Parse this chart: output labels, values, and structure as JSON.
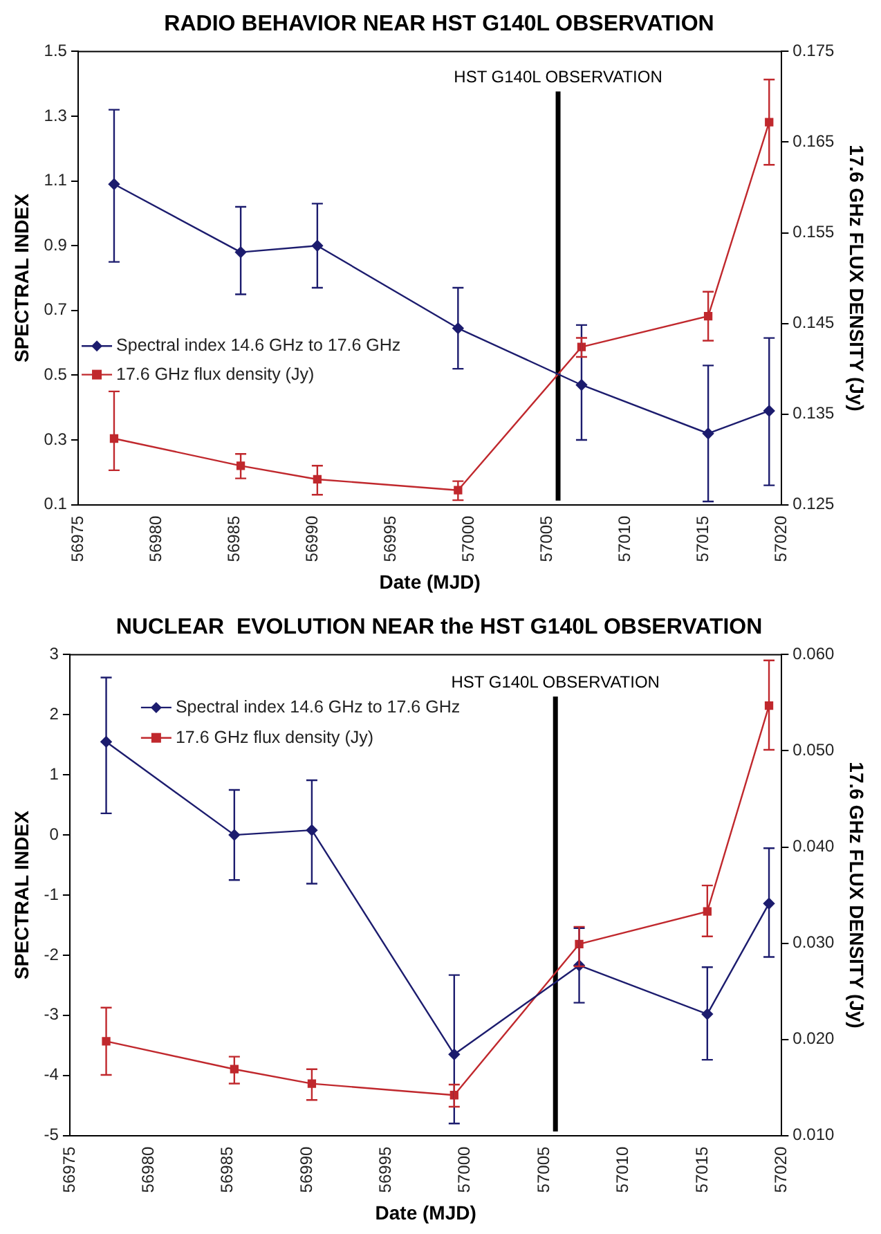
{
  "chart_data": [
    {
      "type": "line",
      "title": "RADIO BEHAVIOR NEAR HST G140L OBSERVATION",
      "xlabel": "Date (MJD)",
      "ylabel": "SPECTRAL INDEX",
      "y2label": "17.6 GHz FLUX DENSITY (Jy)",
      "x": [
        56977.3,
        56985.4,
        56990.3,
        56999.3,
        57007.2,
        57015.3,
        57019.2
      ],
      "xlim": [
        56975,
        57020
      ],
      "xticks": [
        56975,
        56980,
        56985,
        56990,
        56995,
        57000,
        57005,
        57010,
        57015,
        57020
      ],
      "ylim": [
        0.1,
        1.5
      ],
      "yticks": [
        0.1,
        0.3,
        0.5,
        0.7,
        0.9,
        1.1,
        1.3,
        1.5
      ],
      "y2lim": [
        0.125,
        0.175
      ],
      "y2ticks": [
        0.125,
        0.135,
        0.145,
        0.155,
        0.165,
        0.175
      ],
      "grid": false,
      "legend": "left",
      "series": [
        {
          "name": "Spectral index 14.6 GHz to 17.6 GHz",
          "color": "#1c1c6e",
          "marker": "diamond",
          "values": [
            1.09,
            0.88,
            0.9,
            0.645,
            0.47,
            0.32,
            0.39
          ],
          "errors": [
            [
              0.85,
              1.32
            ],
            [
              0.75,
              1.02
            ],
            [
              0.77,
              1.03
            ],
            [
              0.52,
              0.77
            ],
            [
              0.3,
              0.655
            ],
            [
              0.11,
              0.53
            ],
            [
              0.16,
              0.615
            ]
          ]
        },
        {
          "name": "17.6 GHz flux density (Jy)",
          "color": "#c0282d",
          "marker": "square",
          "axis": "y2",
          "values": [
            0.1323,
            0.1293,
            0.1278,
            0.1266,
            0.1424,
            0.1458,
            0.1672
          ],
          "errors": [
            [
              0.1288,
              0.1375
            ],
            [
              0.1279,
              0.1306
            ],
            [
              0.1261,
              0.1293
            ],
            [
              0.1255,
              0.1276
            ],
            [
              0.1413,
              0.1434
            ],
            [
              0.1431,
              0.1485
            ],
            [
              0.1625,
              0.1719
            ]
          ]
        }
      ],
      "ref_lines": [
        {
          "axis": "x",
          "value": 57005.7,
          "label": "HST G140L OBSERVATION",
          "color": "#000000"
        }
      ]
    },
    {
      "type": "line",
      "title": "NUCLEAR  EVOLUTION NEAR the HST G140L OBSERVATION",
      "xlabel": "Date (MJD)",
      "ylabel": "SPECTRAL INDEX",
      "y2label": "17.6 GHz FLUX DENSITY (Jy)",
      "x": [
        56977.3,
        56985.4,
        56990.3,
        56999.3,
        57007.2,
        57015.3,
        57019.2
      ],
      "xlim": [
        56975,
        57020
      ],
      "xticks": [
        56975,
        56980,
        56985,
        56990,
        56995,
        57000,
        57005,
        57010,
        57015,
        57020
      ],
      "ylim": [
        -5,
        3
      ],
      "yticks": [
        -5,
        -4,
        -3,
        -2,
        -1,
        0,
        1,
        2,
        3
      ],
      "y2lim": [
        0.01,
        0.06
      ],
      "y2ticks": [
        {
          "value": 0.01,
          "label": "0.010"
        },
        {
          "value": 0.02,
          "label": "0.020"
        },
        {
          "value": 0.03,
          "label": "0.030"
        },
        {
          "value": 0.04,
          "label": "0.040"
        },
        {
          "value": 0.05,
          "label": "0.050"
        },
        {
          "value": 0.06,
          "label": "0.060"
        }
      ],
      "grid": false,
      "legend": "top left",
      "series": [
        {
          "name": "Spectral index 14.6 GHz to 17.6 GHz",
          "color": "#1c1c6e",
          "marker": "diamond",
          "values": [
            1.55,
            0.0,
            0.08,
            -3.65,
            -2.17,
            -2.98,
            -1.14
          ],
          "errors": [
            [
              0.36,
              2.62
            ],
            [
              -0.75,
              0.75
            ],
            [
              -0.81,
              0.91
            ],
            [
              -4.8,
              -2.33
            ],
            [
              -2.79,
              -1.55
            ],
            [
              -3.74,
              -2.2
            ],
            [
              -2.03,
              -0.22
            ]
          ]
        },
        {
          "name": "17.6 GHz flux density (Jy)",
          "color": "#c0282d",
          "marker": "square",
          "axis": "y2",
          "values": [
            0.0198,
            0.0169,
            0.0154,
            0.0142,
            0.0299,
            0.0333,
            0.0547
          ],
          "errors": [
            [
              0.0163,
              0.0233
            ],
            [
              0.0154,
              0.0182
            ],
            [
              0.0137,
              0.0169
            ],
            [
              0.013,
              0.0153
            ],
            [
              0.0276,
              0.0317
            ],
            [
              0.0307,
              0.036
            ],
            [
              0.0501,
              0.0594
            ]
          ]
        }
      ],
      "ref_lines": [
        {
          "axis": "x",
          "value": 57005.7,
          "label": "HST G140L OBSERVATION",
          "color": "#000000"
        }
      ]
    }
  ]
}
